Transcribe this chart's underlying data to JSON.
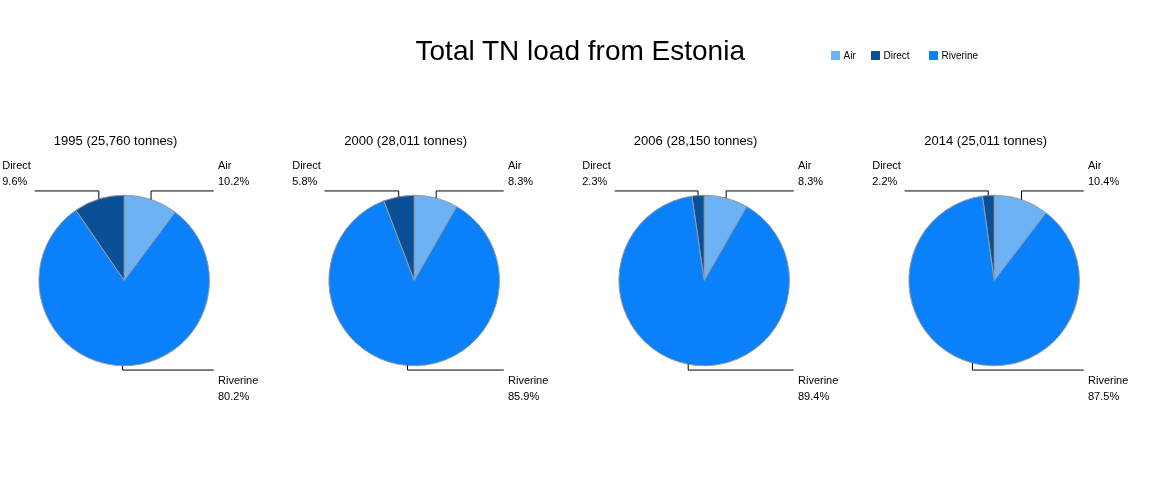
{
  "chart_data": [
    {
      "type": "pie",
      "title": "Total TN load from Estonia",
      "subtitle": "1995 (25,760 tonnes)",
      "categories": [
        "Air",
        "Direct",
        "Riverine"
      ],
      "values": [
        10.2,
        9.6,
        80.2
      ],
      "value_labels": [
        "10.2%",
        "9.6%",
        "80.2%"
      ],
      "colors": [
        "#6cb2f5",
        "#0b4f96",
        "#0a80fa"
      ]
    },
    {
      "type": "pie",
      "subtitle": "2000 (28,011 tonnes)",
      "categories": [
        "Air",
        "Direct",
        "Riverine"
      ],
      "values": [
        8.3,
        5.8,
        85.9
      ],
      "value_labels": [
        "8.3%",
        "5.8%",
        "85.9%"
      ],
      "colors": [
        "#6cb2f5",
        "#0b4f96",
        "#0a80fa"
      ]
    },
    {
      "type": "pie",
      "subtitle": "2006 (28,150 tonnes)",
      "categories": [
        "Air",
        "Direct",
        "Riverine"
      ],
      "values": [
        8.3,
        2.3,
        89.4
      ],
      "value_labels": [
        "8.3%",
        "2.3%",
        "89.4%"
      ],
      "colors": [
        "#6cb2f5",
        "#0b4f96",
        "#0a80fa"
      ]
    },
    {
      "type": "pie",
      "subtitle": "2014 (25,011 tonnes)",
      "categories": [
        "Air",
        "Direct",
        "Riverine"
      ],
      "values": [
        10.4,
        2.2,
        87.5
      ],
      "value_labels": [
        "10.4%",
        "2.2%",
        "87.5%"
      ],
      "colors": [
        "#6cb2f5",
        "#0b4f96",
        "#0a80fa"
      ],
      "legend": "top"
    }
  ]
}
